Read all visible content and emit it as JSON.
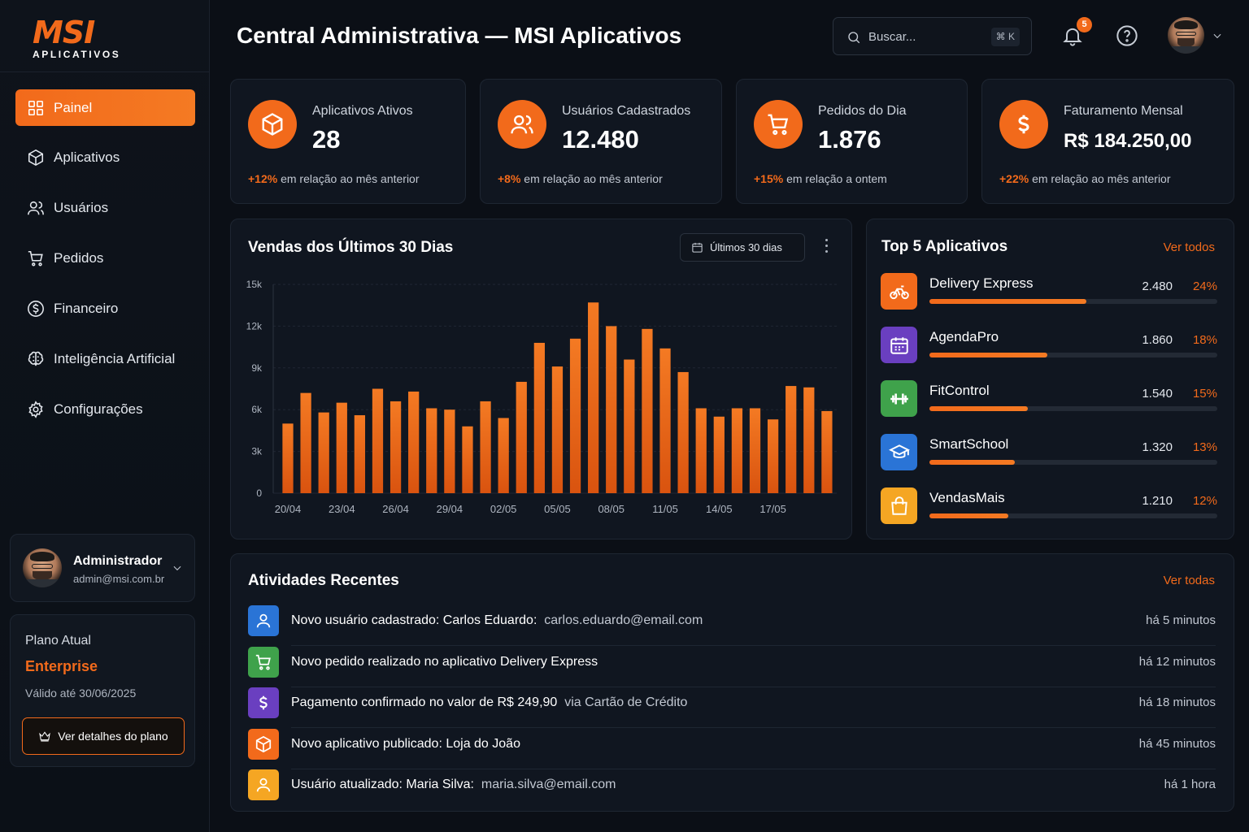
{
  "brand": {
    "name": "MSI",
    "tagline": "APLICATIVOS"
  },
  "header": {
    "title": "Central Administrativa — MSI Aplicativos",
    "search_placeholder": "Buscar...",
    "search_shortcut": "⌘ K",
    "notifications_count": "5"
  },
  "sidebar": {
    "items": [
      {
        "label": "Painel",
        "icon": "grid-icon"
      },
      {
        "label": "Aplicativos",
        "icon": "box-icon"
      },
      {
        "label": "Usuários",
        "icon": "users-icon"
      },
      {
        "label": "Pedidos",
        "icon": "cart-icon"
      },
      {
        "label": "Financeiro",
        "icon": "dollar-circle-icon"
      },
      {
        "label": "Inteligência Artificial",
        "icon": "brain-icon"
      },
      {
        "label": "Configurações",
        "icon": "gear-icon"
      }
    ],
    "user": {
      "name": "Administrador",
      "email": "admin@msi.com.br"
    },
    "plan": {
      "label": "Plano Atual",
      "name": "Enterprise",
      "valid": "Válido até  30/06/2025",
      "button": "Ver detalhes do plano"
    }
  },
  "stats": [
    {
      "label": "Aplicativos Ativos",
      "value": "28",
      "delta": "+12%",
      "delta_text": " em relação ao mês anterior",
      "icon": "box-icon"
    },
    {
      "label": "Usuários Cadastrados",
      "value": "12.480",
      "delta": "+8%",
      "delta_text": " em relação ao mês anterior",
      "icon": "users-icon"
    },
    {
      "label": "Pedidos do Dia",
      "value": "1.876",
      "delta": "+15%",
      "delta_text": " em relação a ontem",
      "icon": "cart-icon"
    },
    {
      "label": "Faturamento Mensal",
      "value": "R$ 184.250,00",
      "delta": "+22%",
      "delta_text": " em relação ao mês anterior",
      "icon": "dollar-icon"
    }
  ],
  "sales": {
    "title": "Vendas dos Últimos 30 Dias",
    "range_label": "Últimos 30 dias"
  },
  "chart_data": {
    "type": "bar",
    "title": "Vendas dos Últimos 30 Dias",
    "ylim": [
      0,
      15000
    ],
    "y_ticks": [
      "0",
      "3k",
      "6k",
      "9k",
      "12k",
      "15k"
    ],
    "x_tick_labels": [
      "20/04",
      "23/04",
      "26/04",
      "29/04",
      "02/05",
      "05/05",
      "08/05",
      "11/05",
      "14/05",
      "17/05"
    ],
    "values": [
      5000,
      7200,
      5800,
      6500,
      5600,
      7500,
      6600,
      7300,
      6100,
      6000,
      4800,
      6600,
      5400,
      8000,
      10800,
      9100,
      11100,
      13700,
      12000,
      9600,
      11800,
      10400,
      8700,
      6100,
      5500,
      6100,
      6100,
      5300,
      7700,
      7600,
      5900
    ],
    "grid": true,
    "color": "#f26a1b"
  },
  "top_apps": {
    "title": "Top 5 Aplicativos",
    "link": "Ver todos",
    "items": [
      {
        "name": "Delivery Express",
        "count": "2.480",
        "pct": "24%",
        "share": 0.24,
        "color": "#f26a1b",
        "icon": "bike-icon"
      },
      {
        "name": "AgendaPro",
        "count": "1.860",
        "pct": "18%",
        "share": 0.18,
        "color": "#6a3fc0",
        "icon": "calendar-icon"
      },
      {
        "name": "FitControl",
        "count": "1.540",
        "pct": "15%",
        "share": 0.15,
        "color": "#3fa24b",
        "icon": "dumbbell-icon"
      },
      {
        "name": "SmartSchool",
        "count": "1.320",
        "pct": "13%",
        "share": 0.13,
        "color": "#2a74d6",
        "icon": "graduation-cap-icon"
      },
      {
        "name": "VendasMais",
        "count": "1.210",
        "pct": "12%",
        "share": 0.12,
        "color": "#f5a623",
        "icon": "shopping-bag-icon"
      }
    ]
  },
  "activities": {
    "title": "Atividades Recentes",
    "link": "Ver todas",
    "items": [
      {
        "text": "Novo usuário cadastrado: Carlos Eduardo:",
        "detail": "carlos.eduardo@email.com",
        "time": "há 5 minutos",
        "color": "#2a74d6",
        "icon": "user-icon"
      },
      {
        "text": "Novo pedido realizado no aplicativo Delivery Express",
        "detail": "",
        "time": "há 12 minutos",
        "color": "#3fa24b",
        "icon": "cart-icon"
      },
      {
        "text": "Pagamento confirmado no valor de R$ 249,90",
        "detail": "via Cartão de Crédito",
        "time": "há 18 minutos",
        "color": "#6a3fc0",
        "icon": "dollar-icon"
      },
      {
        "text": "Novo aplicativo publicado:  Loja do João",
        "detail": "",
        "time": "há 45 minutos",
        "color": "#f26a1b",
        "icon": "box-icon"
      },
      {
        "text": "Usuário atualizado:  Maria Silva:",
        "detail": "maria.silva@email.com",
        "time": "há 1 hora",
        "color": "#f5a623",
        "icon": "user-icon"
      }
    ]
  }
}
